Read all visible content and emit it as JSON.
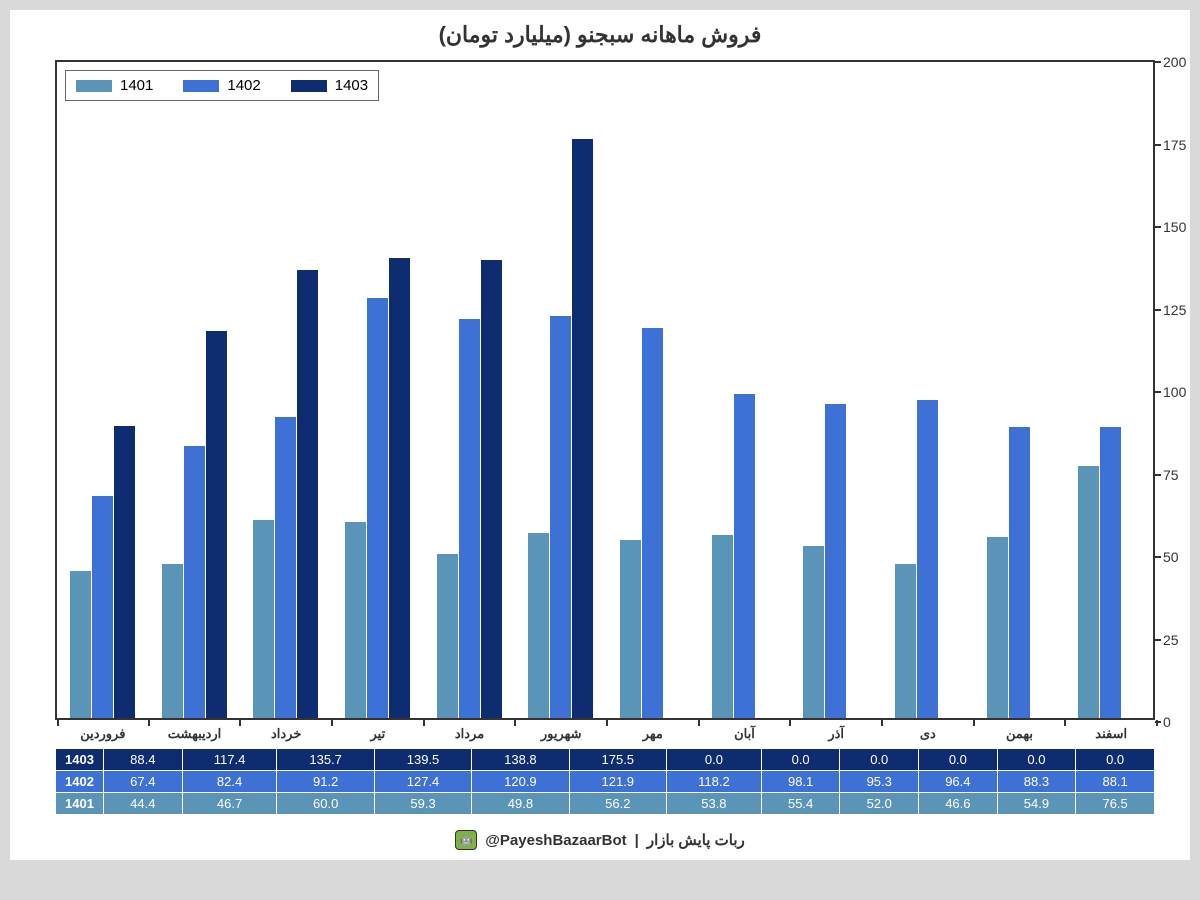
{
  "title": "فروش ماهانه سبجنو (میلیارد تومان)",
  "chart": {
    "type": "bar",
    "ylim": [
      0,
      200
    ],
    "yticks": [
      0,
      25,
      50,
      75,
      100,
      125,
      150,
      175,
      200
    ],
    "categories": [
      "فروردین",
      "اردیبهشت",
      "خرداد",
      "تیر",
      "مرداد",
      "شهریور",
      "مهر",
      "آبان",
      "آذر",
      "دی",
      "بهمن",
      "اسفند"
    ],
    "series": [
      {
        "name": "1401",
        "color": "#5a95b8",
        "values": [
          44.4,
          46.7,
          60.0,
          59.3,
          49.8,
          56.2,
          53.8,
          55.4,
          52.0,
          46.6,
          54.9,
          76.5
        ]
      },
      {
        "name": "1402",
        "color": "#3e71d6",
        "values": [
          67.4,
          82.4,
          91.2,
          127.4,
          120.9,
          121.9,
          118.2,
          98.1,
          95.3,
          96.4,
          88.3,
          88.1
        ]
      },
      {
        "name": "1403",
        "color": "#0d2d70",
        "values": [
          88.4,
          117.4,
          135.7,
          139.5,
          138.8,
          175.5,
          0.0,
          0.0,
          0.0,
          0.0,
          0.0,
          0.0
        ]
      }
    ],
    "bar_group_width": 0.72,
    "background_color": "#ffffff",
    "border_color": "#333333"
  },
  "legend": {
    "position": "top-left",
    "items": [
      {
        "label": "1401",
        "color": "#5a95b8"
      },
      {
        "label": "1402",
        "color": "#3e71d6"
      },
      {
        "label": "1403",
        "color": "#0d2d70"
      }
    ]
  },
  "table": {
    "rows": [
      {
        "label": "1403",
        "color": "#0d2d70",
        "values": [
          "88.4",
          "117.4",
          "135.7",
          "139.5",
          "138.8",
          "175.5",
          "0.0",
          "0.0",
          "0.0",
          "0.0",
          "0.0",
          "0.0"
        ]
      },
      {
        "label": "1402",
        "color": "#3e71d6",
        "values": [
          "67.4",
          "82.4",
          "91.2",
          "127.4",
          "120.9",
          "121.9",
          "118.2",
          "98.1",
          "95.3",
          "96.4",
          "88.3",
          "88.1"
        ]
      },
      {
        "label": "1401",
        "color": "#5a95b8",
        "values": [
          "44.4",
          "46.7",
          "60.0",
          "59.3",
          "49.8",
          "56.2",
          "53.8",
          "55.4",
          "52.0",
          "46.6",
          "54.9",
          "76.5"
        ]
      }
    ]
  },
  "footer": {
    "text_right": "ربات پایش بازار",
    "separator": "|",
    "handle": "@PayeshBazaarBot"
  }
}
